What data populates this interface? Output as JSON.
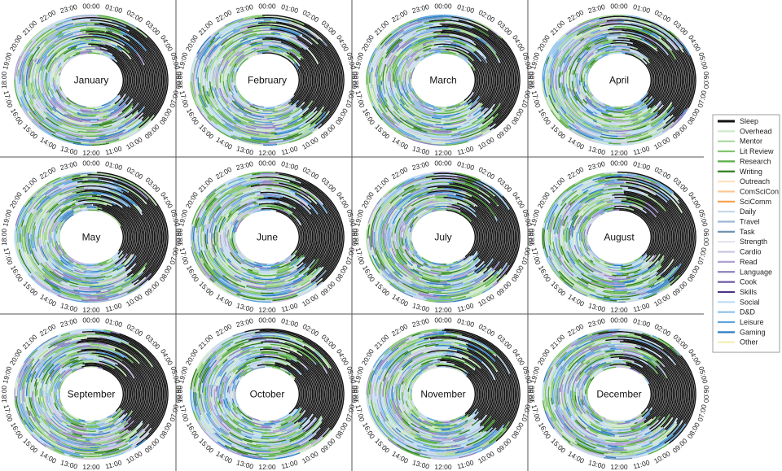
{
  "chart_data": {
    "type": "radial-ring-heatmap",
    "hour_labels": [
      "00:00",
      "01:00",
      "02:00",
      "03:00",
      "04:00",
      "05:00",
      "06:00",
      "07:00",
      "08:00",
      "09:00",
      "10:00",
      "11:00",
      "12:00",
      "13:00",
      "14:00",
      "15:00",
      "16:00",
      "17:00",
      "18:00",
      "19:00",
      "20:00",
      "21:00",
      "22:00",
      "23:00"
    ],
    "months": [
      "January",
      "February",
      "March",
      "April",
      "May",
      "June",
      "July",
      "August",
      "September",
      "October",
      "November",
      "December"
    ],
    "legend": [
      {
        "label": "Sleep",
        "color": "#111111"
      },
      {
        "label": "Overhead",
        "color": "#cfe8c8"
      },
      {
        "label": "Mentor",
        "color": "#a8d79b"
      },
      {
        "label": "Lit Review",
        "color": "#80c46c"
      },
      {
        "label": "Research",
        "color": "#5aae48"
      },
      {
        "label": "Writing",
        "color": "#2e7d1e"
      },
      {
        "label": "Outreach",
        "color": "#fde0c2"
      },
      {
        "label": "ComSciCon",
        "color": "#fbc590"
      },
      {
        "label": "SciComm",
        "color": "#f5a04a"
      },
      {
        "label": "Daily",
        "color": "#c6d8ea"
      },
      {
        "label": "Travel",
        "color": "#9bb7d3"
      },
      {
        "label": "Task",
        "color": "#6f93b5"
      },
      {
        "label": "Strength",
        "color": "#e4e1ef"
      },
      {
        "label": "Cardio",
        "color": "#cbc3e0"
      },
      {
        "label": "Read",
        "color": "#ada2d0"
      },
      {
        "label": "Language",
        "color": "#8e7fbe"
      },
      {
        "label": "Cook",
        "color": "#6e5aa6"
      },
      {
        "label": "Skills",
        "color": "#4c3384"
      },
      {
        "label": "Social",
        "color": "#bcdcf2"
      },
      {
        "label": "D&D",
        "color": "#8fc2e8"
      },
      {
        "label": "Leisure",
        "color": "#5ea4dc"
      },
      {
        "label": "Gaming",
        "color": "#2f7fc4"
      },
      {
        "label": "Other",
        "color": "#f3edb0"
      }
    ]
  }
}
